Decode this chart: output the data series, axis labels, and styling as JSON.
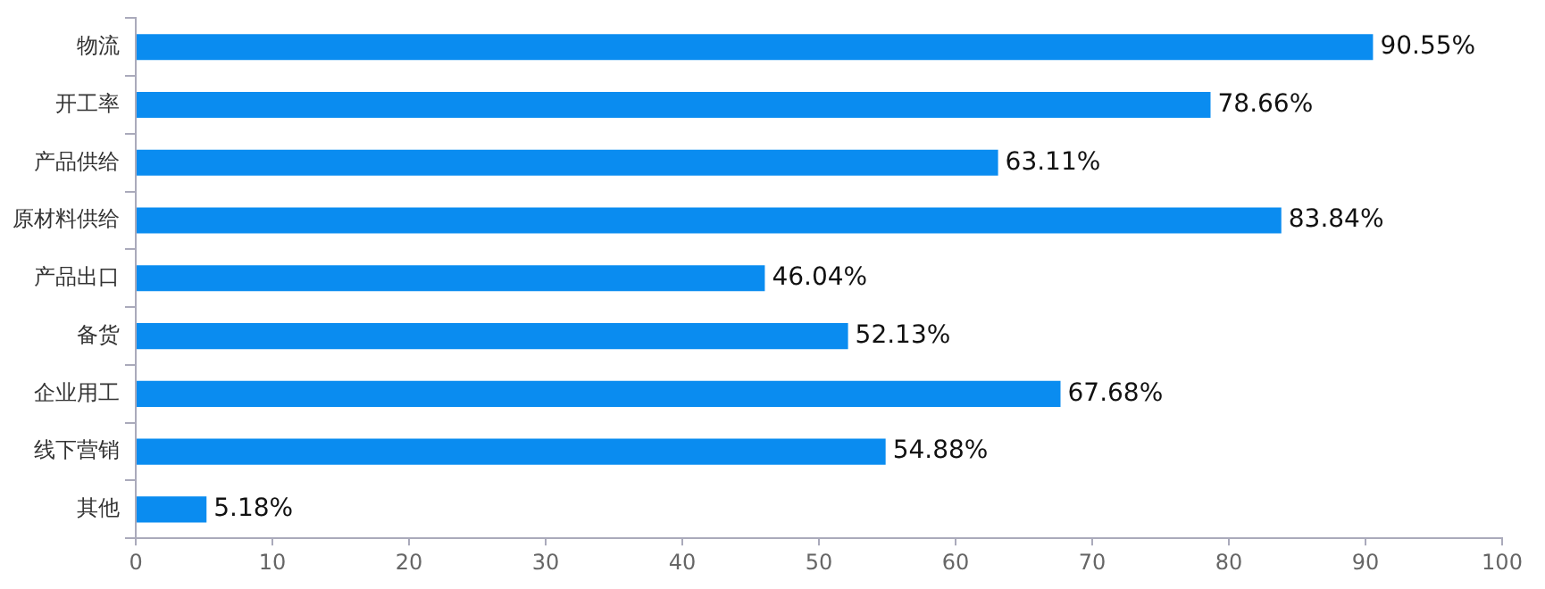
{
  "chart_data": {
    "type": "bar",
    "orientation": "horizontal",
    "categories": [
      "物流",
      "开工率",
      "产品供给",
      "原材料供给",
      "产品出口",
      "备货",
      "企业用工",
      "线下营销",
      "其他"
    ],
    "values": [
      90.55,
      78.66,
      63.11,
      83.84,
      46.04,
      52.13,
      67.68,
      54.88,
      5.18
    ],
    "value_labels": [
      "90.55%",
      "78.66%",
      "63.11%",
      "83.84%",
      "46.04%",
      "52.13%",
      "67.68%",
      "54.88%",
      "5.18%"
    ],
    "color": "#0a8cf0",
    "xlim": [
      0,
      100
    ],
    "xticks": [
      0,
      10,
      20,
      30,
      40,
      50,
      60,
      70,
      80,
      90,
      100
    ]
  }
}
